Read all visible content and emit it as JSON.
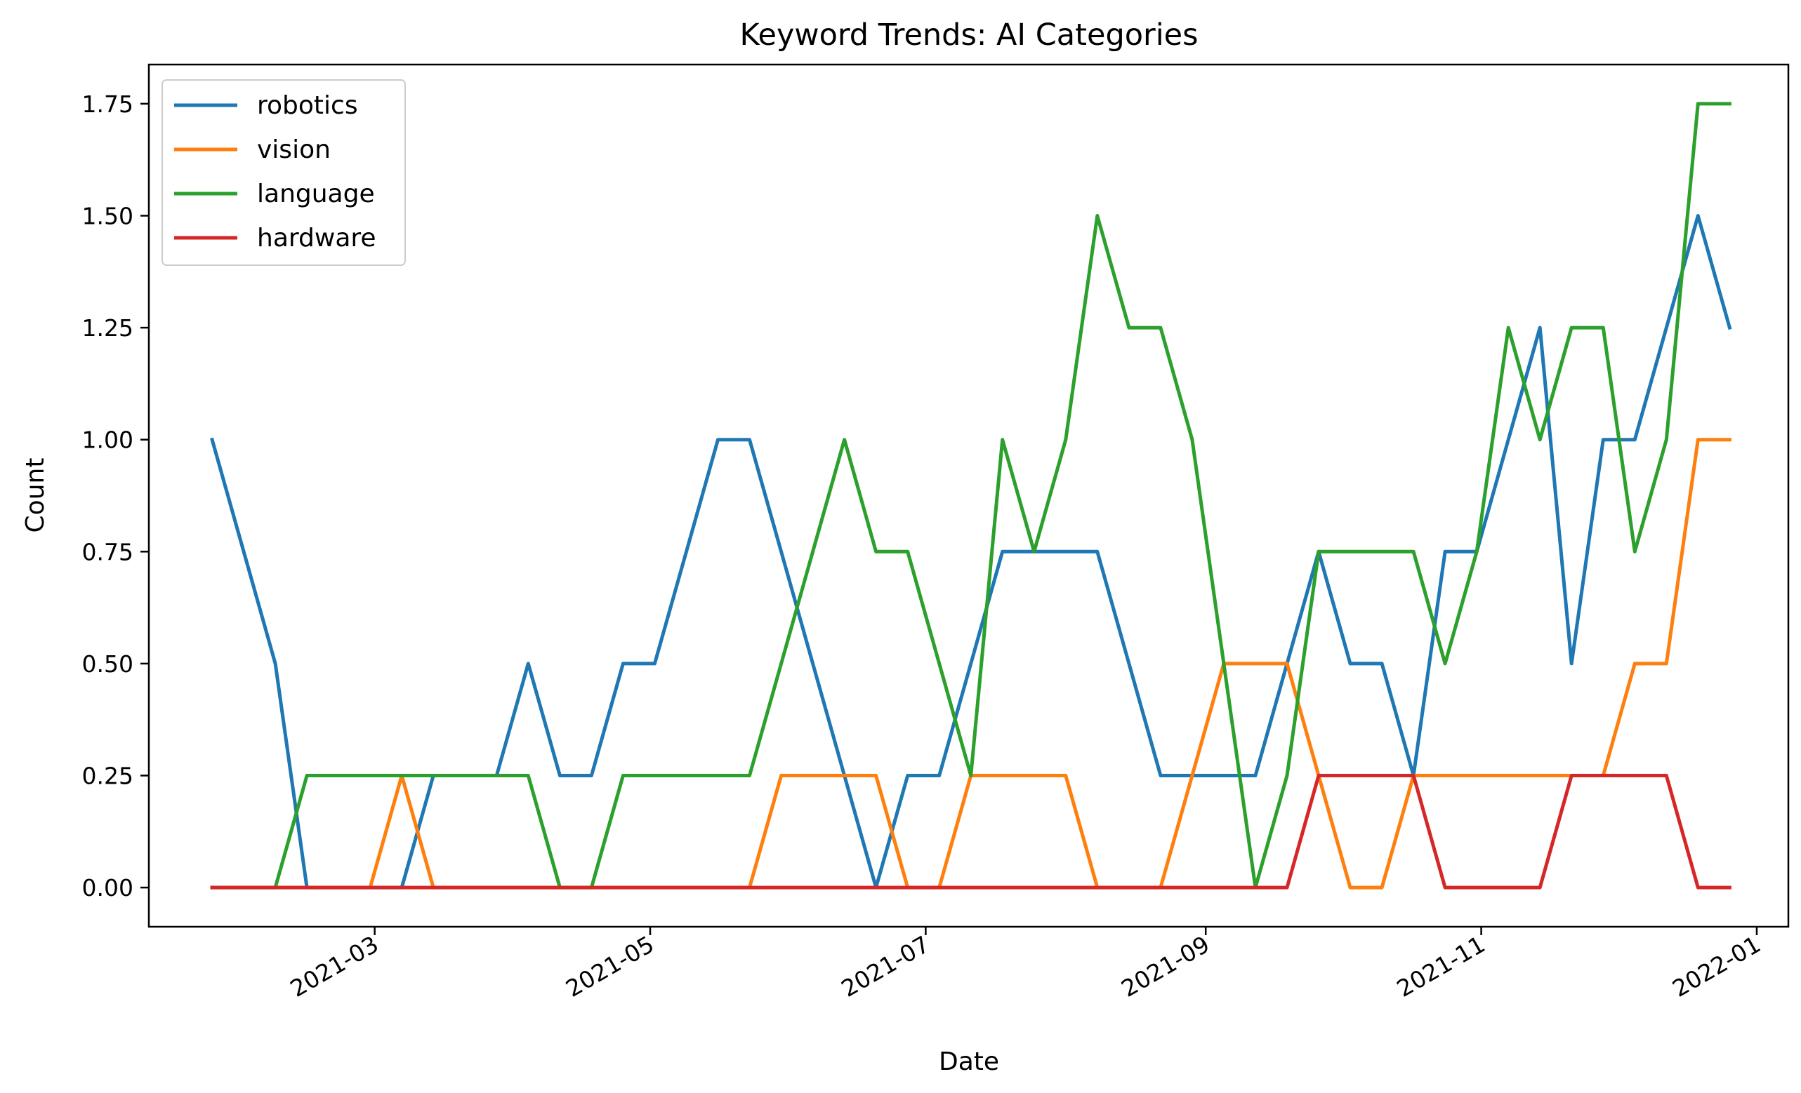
{
  "chart_data": {
    "type": "line",
    "title": "Keyword Trends: AI Categories",
    "xlabel": "Date",
    "ylabel": "Count",
    "x": [
      "2021-01-24",
      "2021-01-31",
      "2021-02-07",
      "2021-02-14",
      "2021-02-21",
      "2021-02-28",
      "2021-03-07",
      "2021-03-14",
      "2021-03-21",
      "2021-03-28",
      "2021-04-04",
      "2021-04-11",
      "2021-04-18",
      "2021-04-25",
      "2021-05-02",
      "2021-05-09",
      "2021-05-16",
      "2021-05-23",
      "2021-05-30",
      "2021-06-06",
      "2021-06-13",
      "2021-06-20",
      "2021-06-27",
      "2021-07-04",
      "2021-07-11",
      "2021-07-18",
      "2021-07-25",
      "2021-08-01",
      "2021-08-08",
      "2021-08-15",
      "2021-08-22",
      "2021-08-29",
      "2021-09-05",
      "2021-09-12",
      "2021-09-19",
      "2021-09-26",
      "2021-10-03",
      "2021-10-10",
      "2021-10-17",
      "2021-10-24",
      "2021-10-31",
      "2021-11-07",
      "2021-11-14",
      "2021-11-21",
      "2021-11-28",
      "2021-12-05",
      "2021-12-12",
      "2021-12-19",
      "2021-12-26"
    ],
    "xlim": [
      "2021-01-10",
      "2022-01-08"
    ],
    "ylim": [
      -0.0875,
      1.8375
    ],
    "xticks": [
      "2021-03",
      "2021-05",
      "2021-07",
      "2021-09",
      "2021-11",
      "2022-01"
    ],
    "yticks": [
      "0.00",
      "0.25",
      "0.50",
      "0.75",
      "1.00",
      "1.25",
      "1.50",
      "1.75"
    ],
    "legend_position": "top-left",
    "grid": false,
    "series": [
      {
        "name": "robotics",
        "color": "#1f77b4",
        "values": [
          1.0,
          0.75,
          0.5,
          0,
          0,
          0,
          0,
          0.25,
          0.25,
          0.25,
          0.5,
          0.25,
          0.25,
          0.5,
          0.5,
          0.75,
          1.0,
          1.0,
          0.75,
          0.5,
          0.25,
          0,
          0.25,
          0.25,
          0.5,
          0.75,
          0.75,
          0.75,
          0.75,
          0.5,
          0.25,
          0.25,
          0.25,
          0.25,
          0.5,
          0.75,
          0.5,
          0.5,
          0.25,
          0.75,
          0.75,
          1.0,
          1.25,
          0.5,
          1.0,
          1.0,
          1.25,
          1.5,
          1.25
        ]
      },
      {
        "name": "vision",
        "color": "#ff7f0e",
        "values": [
          0,
          0,
          0,
          0,
          0,
          0,
          0.25,
          0,
          0,
          0,
          0,
          0,
          0,
          0,
          0,
          0,
          0,
          0,
          0.25,
          0.25,
          0.25,
          0.25,
          0,
          0,
          0.25,
          0.25,
          0.25,
          0.25,
          0,
          0,
          0,
          0.25,
          0.5,
          0.5,
          0.5,
          0.25,
          0,
          0,
          0.25,
          0.25,
          0.25,
          0.25,
          0.25,
          0.25,
          0.25,
          0.5,
          0.5,
          1.0,
          1.0
        ]
      },
      {
        "name": "language",
        "color": "#2ca02c",
        "values": [
          0,
          0,
          0,
          0.25,
          0.25,
          0.25,
          0.25,
          0.25,
          0.25,
          0.25,
          0.25,
          0,
          0,
          0.25,
          0.25,
          0.25,
          0.25,
          0.25,
          0.5,
          0.75,
          1.0,
          0.75,
          0.75,
          0.5,
          0.25,
          1.0,
          0.75,
          1.0,
          1.5,
          1.25,
          1.25,
          1.0,
          0.5,
          0,
          0.25,
          0.75,
          0.75,
          0.75,
          0.75,
          0.5,
          0.75,
          1.25,
          1.0,
          1.25,
          1.25,
          0.75,
          1.0,
          1.75,
          1.75
        ]
      },
      {
        "name": "hardware",
        "color": "#d62728",
        "values": [
          0,
          0,
          0,
          0,
          0,
          0,
          0,
          0,
          0,
          0,
          0,
          0,
          0,
          0,
          0,
          0,
          0,
          0,
          0,
          0,
          0,
          0,
          0,
          0,
          0,
          0,
          0,
          0,
          0,
          0,
          0,
          0,
          0,
          0,
          0,
          0.25,
          0.25,
          0.25,
          0.25,
          0,
          0,
          0,
          0,
          0.25,
          0.25,
          0.25,
          0.25,
          0,
          0
        ]
      }
    ]
  }
}
